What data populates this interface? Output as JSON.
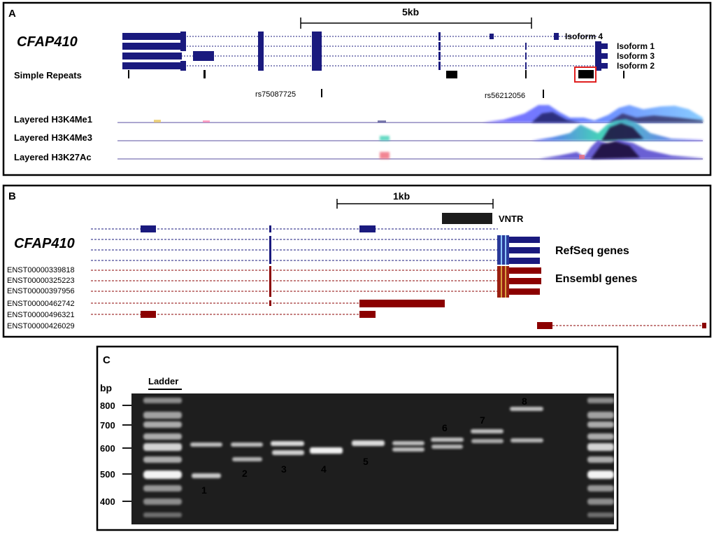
{
  "panel_a": {
    "letter": "A",
    "gene": "CFAP410",
    "scale_label": "5kb",
    "isoforms": [
      "Isoform 4",
      "Isoform 1",
      "Isoform 3",
      "Isoform 2"
    ],
    "simple_repeats_label": "Simple Repeats",
    "snps": [
      "rs75087725",
      "rs56212056"
    ],
    "tracks": [
      "Layered H3K4Me1",
      "Layered H3K4Me3",
      "Layered H3K27Ac"
    ]
  },
  "panel_b": {
    "letter": "B",
    "gene": "CFAP410",
    "scale_label": "1kb",
    "vntr_label": "VNTR",
    "refseq_label": "RefSeq genes",
    "ensembl_label": "Ensembl genes",
    "transcripts": [
      "ENST00000339818",
      "ENST00000325223",
      "ENST00000397956",
      "ENST00000462742",
      "ENST00000496321",
      "ENST00000426029"
    ]
  },
  "panel_c": {
    "letter": "C",
    "unit": "bp",
    "ladder_label": "Ladder",
    "ladder_ticks": [
      "800",
      "700",
      "600",
      "500",
      "400"
    ],
    "lane_numbers": [
      "1",
      "2",
      "3",
      "4",
      "5",
      "6",
      "7",
      "8"
    ]
  },
  "colors": {
    "gene_blue": "#1a1a7e",
    "ensembl_red": "#8b0000",
    "highlight_red": "#e02020",
    "gel_background": "#1b1b1b"
  }
}
